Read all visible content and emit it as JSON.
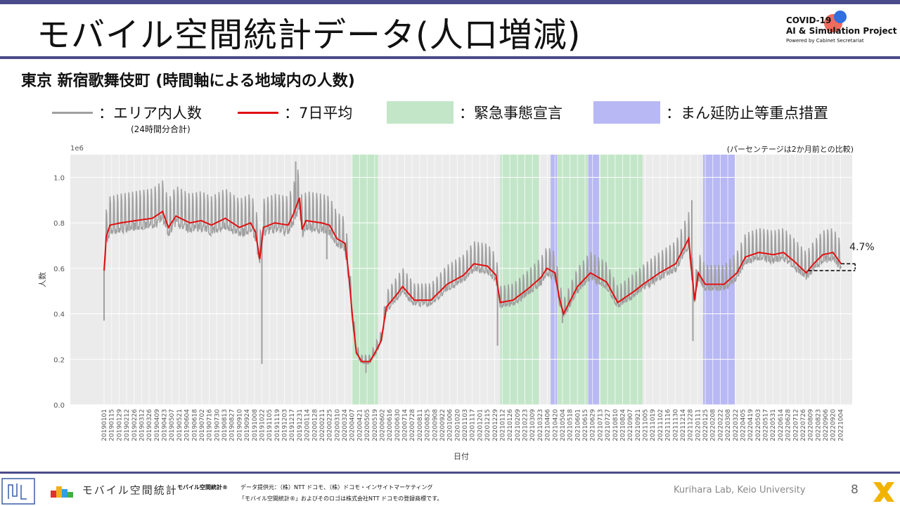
{
  "header": {
    "title": "モバイル空間統計データ(人口増減)",
    "logo_line1": "COVID-19",
    "logo_line2": "AI & Simulation Project",
    "logo_line3": "Powered by Cabinet Secretariat"
  },
  "subtitle": "東京 新宿歌舞伎町 (時間軸による地域内の人数)",
  "legend": {
    "raw_label": "：エリア内人数",
    "raw_sub": "(24時間分合計)",
    "avg_label": "：7日平均",
    "emergency_label": "：緊急事態宣言",
    "manbou_label": "：まん延防止等重点措置"
  },
  "colors": {
    "raw": "#a0a0a0",
    "avg": "#e01010",
    "emergency": "#c3e6c8",
    "manbou": "#b8b8f5",
    "plot_bg": "#ebebeb",
    "accent": "#4a4a8a"
  },
  "chart_data": {
    "type": "line",
    "title": "",
    "xlabel": "日付",
    "ylabel": "人数",
    "y_scale_label": "1e6",
    "y_ticks": [
      "0.0",
      "0.2",
      "0.4",
      "0.6",
      "0.8",
      "1.0"
    ],
    "ylim": [
      0,
      1.1
    ],
    "note": "(パーセンテージは2か月前との比較)",
    "change_label": "4.7%",
    "x_range": [
      "2019-01-01",
      "2022-10-10"
    ],
    "x_tick_labels": [
      "20190101",
      "20190115",
      "20190129",
      "20190212",
      "20190226",
      "20190312",
      "20190326",
      "20190409",
      "20190423",
      "20190507",
      "20190521",
      "20190604",
      "20190618",
      "20190702",
      "20190716",
      "20190730",
      "20190813",
      "20190827",
      "20190910",
      "20190924",
      "20191008",
      "20191022",
      "20191105",
      "20191119",
      "20191203",
      "20191217",
      "20191231",
      "20200114",
      "20200128",
      "20200211",
      "20200225",
      "20200310",
      "20200324",
      "20200407",
      "20200421",
      "20200505",
      "20200519",
      "20200602",
      "20200616",
      "20200630",
      "20200714",
      "20200728",
      "20200811",
      "20200825",
      "20200908",
      "20200922",
      "20201006",
      "20201020",
      "20201103",
      "20201117",
      "20201201",
      "20201215",
      "20201229",
      "20210112",
      "20210126",
      "20210209",
      "20210223",
      "20210309",
      "20210323",
      "20210406",
      "20210420",
      "20210504",
      "20210518",
      "20210601",
      "20210615",
      "20210629",
      "20210713",
      "20210727",
      "20210810",
      "20210824",
      "20210907",
      "20210921",
      "20211005",
      "20211019",
      "20211102",
      "20211116",
      "20211130",
      "20211214",
      "20211228",
      "20220111",
      "20220125",
      "20220208",
      "20220222",
      "20220308",
      "20220322",
      "20220405",
      "20220419",
      "20220503",
      "20220517",
      "20220531",
      "20220614",
      "20220628",
      "20220712",
      "20220726",
      "20220809",
      "20220823",
      "20220906",
      "20220920",
      "20221004"
    ],
    "emergency_periods": [
      [
        "2020-04-07",
        "2020-05-25"
      ],
      [
        "2021-01-08",
        "2021-03-21"
      ],
      [
        "2021-04-25",
        "2021-06-20"
      ],
      [
        "2021-07-12",
        "2021-09-30"
      ]
    ],
    "manbou_periods": [
      [
        "2021-04-12",
        "2021-04-24"
      ],
      [
        "2021-06-21",
        "2021-07-11"
      ],
      [
        "2022-01-21",
        "2022-03-21"
      ]
    ],
    "avg_series": {
      "name": "7日平均",
      "points": [
        [
          "2019-01-01",
          0.59
        ],
        [
          "2019-01-05",
          0.74
        ],
        [
          "2019-01-12",
          0.79
        ],
        [
          "2019-02-01",
          0.8
        ],
        [
          "2019-03-01",
          0.81
        ],
        [
          "2019-04-01",
          0.82
        ],
        [
          "2019-04-20",
          0.85
        ],
        [
          "2019-05-01",
          0.78
        ],
        [
          "2019-05-15",
          0.83
        ],
        [
          "2019-06-10",
          0.8
        ],
        [
          "2019-07-01",
          0.81
        ],
        [
          "2019-07-20",
          0.79
        ],
        [
          "2019-08-15",
          0.82
        ],
        [
          "2019-09-10",
          0.78
        ],
        [
          "2019-10-01",
          0.8
        ],
        [
          "2019-10-10",
          0.76
        ],
        [
          "2019-10-18",
          0.64
        ],
        [
          "2019-10-25",
          0.78
        ],
        [
          "2019-11-15",
          0.8
        ],
        [
          "2019-12-10",
          0.79
        ],
        [
          "2019-12-20",
          0.84
        ],
        [
          "2019-12-31",
          0.91
        ],
        [
          "2020-01-05",
          0.77
        ],
        [
          "2020-01-12",
          0.81
        ],
        [
          "2020-02-10",
          0.8
        ],
        [
          "2020-02-25",
          0.79
        ],
        [
          "2020-03-10",
          0.73
        ],
        [
          "2020-03-25",
          0.71
        ],
        [
          "2020-04-01",
          0.57
        ],
        [
          "2020-04-08",
          0.38
        ],
        [
          "2020-04-15",
          0.23
        ],
        [
          "2020-04-25",
          0.19
        ],
        [
          "2020-05-10",
          0.19
        ],
        [
          "2020-05-20",
          0.23
        ],
        [
          "2020-05-31",
          0.28
        ],
        [
          "2020-06-10",
          0.43
        ],
        [
          "2020-07-01",
          0.49
        ],
        [
          "2020-07-10",
          0.52
        ],
        [
          "2020-08-01",
          0.46
        ],
        [
          "2020-09-01",
          0.46
        ],
        [
          "2020-10-01",
          0.53
        ],
        [
          "2020-11-01",
          0.57
        ],
        [
          "2020-11-20",
          0.62
        ],
        [
          "2020-12-15",
          0.61
        ],
        [
          "2020-12-31",
          0.57
        ],
        [
          "2021-01-08",
          0.45
        ],
        [
          "2021-02-01",
          0.46
        ],
        [
          "2021-03-01",
          0.51
        ],
        [
          "2021-03-25",
          0.56
        ],
        [
          "2021-04-05",
          0.6
        ],
        [
          "2021-04-20",
          0.58
        ],
        [
          "2021-04-28",
          0.47
        ],
        [
          "2021-05-06",
          0.4
        ],
        [
          "2021-06-01",
          0.52
        ],
        [
          "2021-06-25",
          0.58
        ],
        [
          "2021-07-10",
          0.56
        ],
        [
          "2021-07-25",
          0.54
        ],
        [
          "2021-08-15",
          0.45
        ],
        [
          "2021-09-15",
          0.5
        ],
        [
          "2021-10-01",
          0.53
        ],
        [
          "2021-11-01",
          0.58
        ],
        [
          "2021-12-01",
          0.62
        ],
        [
          "2021-12-25",
          0.73
        ],
        [
          "2022-01-05",
          0.46
        ],
        [
          "2022-01-12",
          0.58
        ],
        [
          "2022-01-25",
          0.53
        ],
        [
          "2022-03-01",
          0.53
        ],
        [
          "2022-03-25",
          0.58
        ],
        [
          "2022-04-10",
          0.65
        ],
        [
          "2022-05-05",
          0.67
        ],
        [
          "2022-06-01",
          0.66
        ],
        [
          "2022-06-20",
          0.67
        ],
        [
          "2022-07-10",
          0.63
        ],
        [
          "2022-08-01",
          0.58
        ],
        [
          "2022-08-15",
          0.62
        ],
        [
          "2022-09-01",
          0.66
        ],
        [
          "2022-09-20",
          0.67
        ],
        [
          "2022-10-05",
          0.62
        ]
      ]
    },
    "raw_series": {
      "name": "エリア内人数",
      "spikes_low": [
        [
          "2019-01-01",
          0.37
        ],
        [
          "2019-10-22",
          0.18
        ],
        [
          "2020-02-20",
          0.64
        ],
        [
          "2021-01-03",
          0.26
        ],
        [
          "2022-01-02",
          0.28
        ],
        [
          "2021-05-04",
          0.36
        ],
        [
          "2020-05-03",
          0.14
        ],
        [
          "2021-12-31",
          0.9
        ],
        [
          "2019-12-24",
          1.07
        ]
      ]
    }
  },
  "footer": {
    "brand": "モバイル空間統計®",
    "provider": "データ提供元：（株）NTT ドコモ、（株）ドコモ・インサイトマーケティング",
    "trademark": "「モバイル空間統計®」およびそのロゴは株式会社NTT ドコモの登録商標です。",
    "logo_text": "モバイル空間統計",
    "lab": "Kurihara Lab, Keio University",
    "page": "8"
  }
}
